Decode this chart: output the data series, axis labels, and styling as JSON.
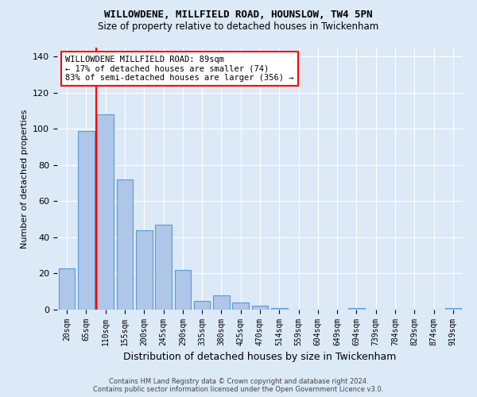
{
  "title": "WILLOWDENE, MILLFIELD ROAD, HOUNSLOW, TW4 5PN",
  "subtitle": "Size of property relative to detached houses in Twickenham",
  "xlabel": "Distribution of detached houses by size in Twickenham",
  "ylabel": "Number of detached properties",
  "categories": [
    "20sqm",
    "65sqm",
    "110sqm",
    "155sqm",
    "200sqm",
    "245sqm",
    "290sqm",
    "335sqm",
    "380sqm",
    "425sqm",
    "470sqm",
    "514sqm",
    "559sqm",
    "604sqm",
    "649sqm",
    "694sqm",
    "739sqm",
    "784sqm",
    "829sqm",
    "874sqm",
    "919sqm"
  ],
  "values": [
    23,
    99,
    108,
    72,
    44,
    47,
    22,
    5,
    8,
    4,
    2,
    1,
    0,
    0,
    0,
    1,
    0,
    0,
    0,
    0,
    1
  ],
  "bar_color": "#aec6e8",
  "bar_edge_color": "#5b9bd5",
  "background_color": "#dce9f7",
  "plot_bg_color": "#dce9f7",
  "grid_color": "#ffffff",
  "ylim": [
    0,
    145
  ],
  "yticks": [
    0,
    20,
    40,
    60,
    80,
    100,
    120,
    140
  ],
  "red_line_x": 1.5,
  "annotation_line1": "WILLOWDENE MILLFIELD ROAD: 89sqm",
  "annotation_line2": "← 17% of detached houses are smaller (74)",
  "annotation_line3": "83% of semi-detached houses are larger (356) →",
  "annotation_box_color": "#ffffff",
  "annotation_text_color": "#000000",
  "red_line_color": "#ff0000",
  "footer": "Contains HM Land Registry data © Crown copyright and database right 2024.\nContains public sector information licensed under the Open Government Licence v3.0.",
  "title_fontsize": 9,
  "subtitle_fontsize": 8.5,
  "xlabel_fontsize": 9,
  "ylabel_fontsize": 8,
  "tick_fontsize": 7,
  "annotation_fontsize": 7.5,
  "footer_fontsize": 6
}
